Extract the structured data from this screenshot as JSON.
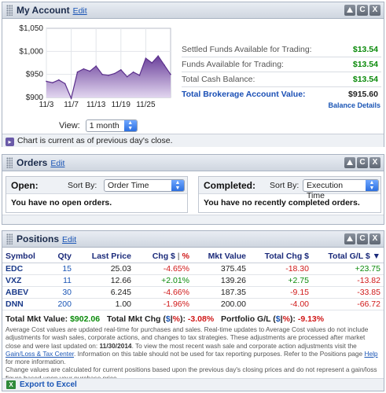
{
  "account": {
    "title": "My Account",
    "edit": "Edit",
    "funds": [
      {
        "label": "Settled Funds Available for Trading:",
        "value": "$13.54"
      },
      {
        "label": "Funds Available for Trading:",
        "value": "$13.54"
      },
      {
        "label": "Total Cash Balance:",
        "value": "$13.54"
      },
      {
        "label": "Total Brokerage Account Value:",
        "value": "$915.60"
      }
    ],
    "balance_details": "Balance Details",
    "view_label": "View:",
    "view_value": "1 month",
    "note": "Chart is current as of previous day's close."
  },
  "chart_data": {
    "type": "area",
    "y_ticks": [
      "$1,050",
      "$1,000",
      "$950",
      "$900"
    ],
    "ylim": [
      900,
      1050
    ],
    "x_ticks": [
      "11/3",
      "11/7",
      "11/13",
      "11/19",
      "11/25"
    ],
    "x_tick_index": [
      0,
      4,
      8,
      12,
      16
    ],
    "values": [
      935,
      932,
      938,
      930,
      898,
      955,
      962,
      957,
      968,
      950,
      948,
      952,
      960,
      945,
      955,
      948,
      985,
      975,
      990,
      970,
      950
    ],
    "colors": {
      "fill_top": "#6a3f9a",
      "fill_bottom": "#e4d9f1",
      "line": "#5b2f8c"
    },
    "grid": true
  },
  "orders": {
    "title": "Orders",
    "edit": "Edit",
    "open": {
      "label": "Open:",
      "sort_label": "Sort By:",
      "sort_value": "Order Time",
      "message": "You have no open orders."
    },
    "completed": {
      "label": "Completed:",
      "sort_label": "Sort By:",
      "sort_value": "Execution Time",
      "message": "You have no recently completed orders."
    }
  },
  "positions": {
    "title": "Positions",
    "edit": "Edit",
    "headers": {
      "symbol": "Symbol",
      "qty": "Qty",
      "last": "Last Price",
      "chg": "Chg $",
      "pct": "%",
      "mkt": "Mkt Value",
      "tchg": "Total Chg $",
      "tgl": "Total G/L $ ▼"
    },
    "rows": [
      {
        "symbol": "EDC",
        "qty": "15",
        "last": "25.03",
        "chg": "-4.65%",
        "mkt": "375.45",
        "tchg": "-18.30",
        "tgl": "+23.75"
      },
      {
        "symbol": "VXZ",
        "qty": "11",
        "last": "12.66",
        "chg": "+2.01%",
        "mkt": "139.26",
        "tchg": "+2.75",
        "tgl": "-13.82"
      },
      {
        "symbol": "ABEV",
        "qty": "30",
        "last": "6.245",
        "chg": "-4.66%",
        "mkt": "187.35",
        "tchg": "-9.15",
        "tgl": "-33.85"
      },
      {
        "symbol": "DNN",
        "qty": "200",
        "last": "1.00",
        "chg": "-1.96%",
        "mkt": "200.00",
        "tchg": "-4.00",
        "tgl": "-66.72"
      }
    ],
    "totals": {
      "mkt_label": "Total Mkt Value:",
      "mkt_value": "$902.06",
      "chg_label": "Total Mkt Chg (",
      "chg_dollar": "$",
      "chg_pct": "%",
      "chg_close": "):",
      "chg_value": "-3.08%",
      "gl_label": "Portfolio G/L (",
      "gl_dollar": "$",
      "gl_pct": "%",
      "gl_close": "):",
      "gl_value": "-9.13%"
    },
    "fine1": "Average Cost values are updated real-time for purchases and sales. Real-time updates to Average Cost values do not include adjustments for wash sales, corporate actions, and changes to tax strategies. These adjustments are processed after market close and were last updated on:",
    "fine_date": "11/30/2014",
    "fine2": ". To view the most recent wash sale and corporate action adjustments visit the",
    "fine_link": "Gain/Loss & Tax Center",
    "fine3": ". Information on this table should not be used for tax reporting purposes. Refer to the Positions page",
    "fine_help": "Help",
    "fine4": "for more information.",
    "fine5": "Change values are calculated for current positions based upon the previous day's closing prices and do not represent a gain/loss figure based upon your purchase price.",
    "export": "Export to Excel"
  }
}
